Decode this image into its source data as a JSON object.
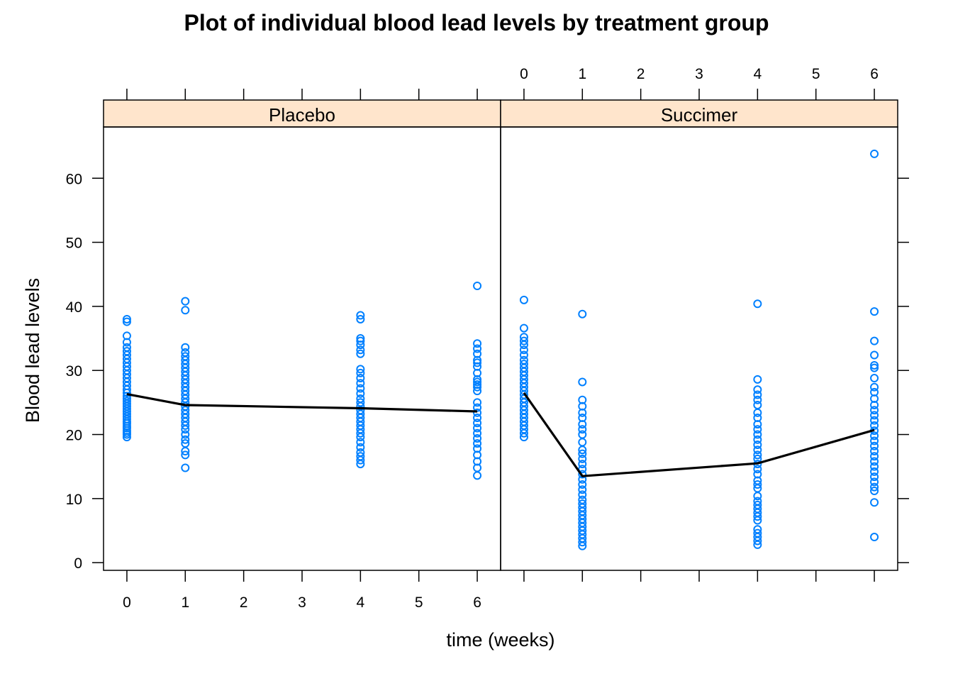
{
  "chart_data": {
    "type": "scatter",
    "title": "Plot of individual blood lead levels by treatment group",
    "xlabel": "time (weeks)",
    "ylabel": "Blood lead levels",
    "xlim": [
      -0.4,
      6.4
    ],
    "ylim": [
      -1.2,
      68
    ],
    "x_ticks": [
      "0",
      "1",
      "2",
      "3",
      "4",
      "5",
      "6"
    ],
    "y_ticks": [
      "0",
      "10",
      "20",
      "30",
      "40",
      "50",
      "60"
    ],
    "point_color": "#0080ff",
    "line_color": "#000000",
    "strip_color": "#ffe5cc",
    "panels": [
      {
        "name": "Placebo",
        "points": {
          "0": [
            19.6,
            20.0,
            20.3,
            20.6,
            21.0,
            21.3,
            21.7,
            22.0,
            22.4,
            22.8,
            23.2,
            23.6,
            24.0,
            24.4,
            24.8,
            25.2,
            25.6,
            26.0,
            26.5,
            27.0,
            27.6,
            28.2,
            28.8,
            29.4,
            30.0,
            30.6,
            31.2,
            31.8,
            32.4,
            33.0,
            33.6,
            34.4,
            35.4,
            37.6,
            38.0
          ],
          "1": [
            14.8,
            16.8,
            17.4,
            18.6,
            19.2,
            20.0,
            20.8,
            21.4,
            22.0,
            22.6,
            23.2,
            23.8,
            24.4,
            25.0,
            25.6,
            26.2,
            26.8,
            27.4,
            28.0,
            28.6,
            29.2,
            29.8,
            30.4,
            31.0,
            31.6,
            32.2,
            32.8,
            33.6,
            39.4,
            40.8
          ],
          "4": [
            15.4,
            16.0,
            16.6,
            17.2,
            18.0,
            18.8,
            19.6,
            20.2,
            20.8,
            21.4,
            22.0,
            22.6,
            23.2,
            23.8,
            24.4,
            25.0,
            25.6,
            26.4,
            27.2,
            28.0,
            28.8,
            29.6,
            30.2,
            32.6,
            33.2,
            34.0,
            34.6,
            35.0,
            38.0,
            38.6
          ],
          "6": [
            13.6,
            14.8,
            15.8,
            16.8,
            17.8,
            18.6,
            19.4,
            20.2,
            21.0,
            21.8,
            22.6,
            23.4,
            24.2,
            25.0,
            26.8,
            27.4,
            27.8,
            28.2,
            28.6,
            29.6,
            30.6,
            31.2,
            31.6,
            32.6,
            33.4,
            34.2,
            43.2
          ]
        },
        "mean": [
          [
            0,
            26.3
          ],
          [
            1,
            24.6
          ],
          [
            4,
            24.1
          ],
          [
            6,
            23.6
          ]
        ]
      },
      {
        "name": "Succimer",
        "points": {
          "0": [
            19.6,
            20.2,
            20.8,
            21.4,
            22.0,
            22.6,
            23.2,
            23.8,
            24.4,
            25.0,
            25.6,
            26.2,
            26.8,
            27.4,
            28.0,
            28.6,
            29.2,
            29.8,
            30.4,
            31.0,
            31.6,
            32.4,
            33.2,
            34.0,
            34.6,
            35.2,
            36.6,
            41.0
          ],
          "1": [
            2.6,
            3.2,
            3.8,
            4.4,
            5.0,
            5.6,
            6.2,
            6.8,
            7.4,
            8.0,
            8.6,
            9.2,
            9.8,
            10.6,
            11.4,
            12.2,
            13.0,
            13.8,
            14.6,
            15.4,
            16.2,
            17.0,
            17.6,
            18.8,
            20.0,
            20.8,
            21.6,
            22.6,
            23.4,
            24.4,
            25.4,
            28.2,
            38.8
          ],
          "4": [
            2.8,
            3.4,
            4.0,
            4.6,
            5.2,
            6.6,
            7.2,
            7.8,
            8.4,
            9.0,
            9.6,
            10.4,
            11.6,
            12.2,
            12.8,
            13.8,
            14.6,
            15.4,
            16.2,
            16.8,
            17.6,
            18.4,
            19.2,
            20.0,
            20.8,
            21.6,
            22.6,
            23.4,
            24.6,
            25.4,
            26.2,
            27.0,
            28.6,
            40.4
          ],
          "6": [
            4.0,
            9.4,
            11.2,
            11.8,
            12.6,
            13.4,
            14.2,
            15.0,
            15.8,
            16.6,
            17.4,
            18.2,
            19.0,
            19.8,
            20.6,
            21.4,
            22.2,
            23.0,
            23.8,
            24.6,
            25.6,
            26.6,
            27.4,
            28.8,
            30.4,
            30.8,
            32.4,
            34.6,
            39.2,
            63.8
          ]
        },
        "mean": [
          [
            0,
            26.5
          ],
          [
            1,
            13.5
          ],
          [
            4,
            15.5
          ],
          [
            6,
            20.7
          ]
        ]
      }
    ]
  }
}
